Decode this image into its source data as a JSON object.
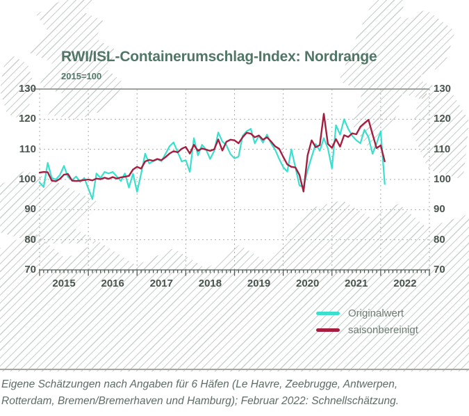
{
  "chart_data": {
    "type": "line",
    "title": "RWI/ISL-Containerumschlag-Index: Nordrange",
    "subtitle": "2015=100",
    "x_start": "2015-01",
    "x_end": "2022-02",
    "x_unit": "month",
    "year_labels": [
      "2015",
      "2016",
      "2017",
      "2018",
      "2019",
      "2020",
      "2021",
      "2022"
    ],
    "ylim": [
      70,
      130
    ],
    "yticks": [
      70,
      80,
      90,
      100,
      110,
      120,
      130
    ],
    "grid": "dashed",
    "legend_position": "bottom-right",
    "series": [
      {
        "name": "Originalwert",
        "color": "#3adfce",
        "values": [
          99.0,
          97.5,
          105.5,
          100.5,
          100.0,
          101.5,
          104.5,
          100.8,
          99.8,
          101.0,
          99.2,
          100.5,
          97.0,
          93.5,
          102.0,
          100.5,
          102.5,
          102.0,
          102.5,
          101.0,
          99.5,
          102.0,
          97.3,
          101.9,
          95.9,
          101.9,
          108.6,
          105.3,
          106.1,
          106.7,
          106.1,
          108.5,
          111.0,
          112.3,
          109.1,
          106.0,
          106.4,
          102.5,
          113.7,
          108.0,
          111.5,
          109.9,
          106.8,
          109.5,
          115.6,
          112.6,
          111.4,
          108.4,
          107.0,
          107.6,
          114.5,
          116.0,
          116.8,
          112.0,
          114.5,
          112.2,
          114.9,
          112.0,
          109.9,
          106.8,
          104.1,
          102.6,
          110.0,
          104.0,
          98.0,
          97.5,
          103.0,
          107.5,
          111.8,
          109.5,
          113.7,
          110.3,
          103.7,
          118.0,
          114.9,
          120.0,
          116.8,
          114.5,
          113.0,
          112.0,
          116.5,
          114.0,
          108.5,
          112.0,
          116.0,
          98.5
        ]
      },
      {
        "name": "saisonbereinigt",
        "color": "#a51e3f",
        "values": [
          102.3,
          102.5,
          102.4,
          99.6,
          99.4,
          100.2,
          101.6,
          101.8,
          99.6,
          99.5,
          99.6,
          99.8,
          100.0,
          99.7,
          100.3,
          100.1,
          100.6,
          100.2,
          100.8,
          100.3,
          100.7,
          100.9,
          101.2,
          103.3,
          104.2,
          103.6,
          106.0,
          106.5,
          106.2,
          106.8,
          106.4,
          107.4,
          108.6,
          109.4,
          109.0,
          110.2,
          110.8,
          108.6,
          111.5,
          109.5,
          110.3,
          109.9,
          109.5,
          110.0,
          113.3,
          109.6,
          112.5,
          113.2,
          113.0,
          112.0,
          114.0,
          115.5,
          115.2,
          114.0,
          114.6,
          113.2,
          114.0,
          112.6,
          111.0,
          110.2,
          107.5,
          105.0,
          104.2,
          104.0,
          101.5,
          96.0,
          108.0,
          113.0,
          110.7,
          111.4,
          121.8,
          111.8,
          110.5,
          113.4,
          110.9,
          114.7,
          114.1,
          115.3,
          115.0,
          117.5,
          118.7,
          119.8,
          115.0,
          110.4,
          111.3,
          106.0
        ]
      }
    ]
  },
  "legend": {
    "items": [
      {
        "label": "Originalwert",
        "color": "#3adfce"
      },
      {
        "label": "saisonbereinigt",
        "color": "#a51e3f"
      }
    ]
  },
  "footer": {
    "note": "Eigene Schätzungen nach Angaben für 6 Häfen (Le Havre, Zeebrugge, Antwerpen, Rotterdam, Bremen/Bremerhaven und Hamburg); Februar 2022: Schnellschätzung."
  },
  "colors": {
    "title": "#507766",
    "axis_text": "#49544d",
    "gridline": "#a7aea8",
    "hatch": "#c8d0ca",
    "footer_text": "#5d6d64"
  }
}
